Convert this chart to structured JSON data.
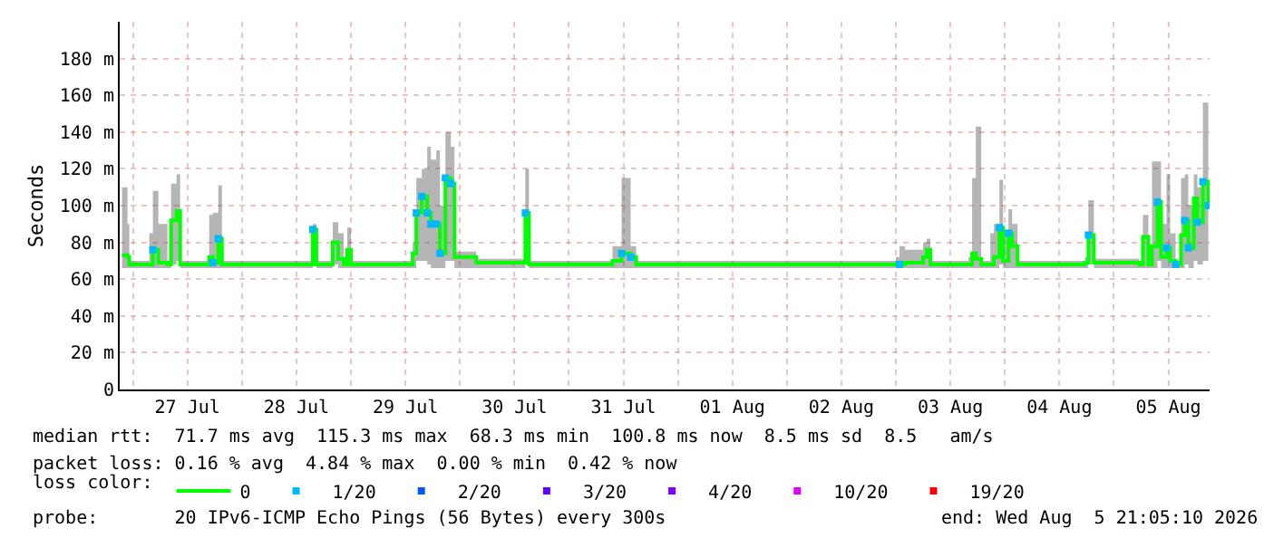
{
  "chart_data": {
    "type": "line",
    "ylabel": "Seconds",
    "xlim": [
      "2026-07-26T21:05",
      "2026-08-05T21:05"
    ],
    "ylim": [
      0,
      200
    ],
    "yticks": [
      0,
      {
        "value": 20,
        "label": "20 m"
      },
      {
        "value": 40,
        "label": "40 m"
      },
      {
        "value": 60,
        "label": "60 m"
      },
      {
        "value": 80,
        "label": "80 m"
      },
      {
        "value": 100,
        "label": "100 m"
      },
      {
        "value": 120,
        "label": "120 m"
      },
      {
        "value": 140,
        "label": "140 m"
      },
      {
        "value": 160,
        "label": "160 m"
      },
      {
        "value": 180,
        "label": "180 m"
      }
    ],
    "xticks": [
      {
        "value": "2026-07-27",
        "label": null
      },
      {
        "value": "2026-07-27T12:00",
        "label": "27 Jul"
      },
      {
        "value": "2026-07-28",
        "label": null
      },
      {
        "value": "2026-07-28T12:00",
        "label": "28 Jul"
      },
      {
        "value": "2026-07-29",
        "label": null
      },
      {
        "value": "2026-07-29T12:00",
        "label": "29 Jul"
      },
      {
        "value": "2026-07-30",
        "label": null
      },
      {
        "value": "2026-07-30T12:00",
        "label": "30 Jul"
      },
      {
        "value": "2026-07-31",
        "label": null
      },
      {
        "value": "2026-07-31T12:00",
        "label": "31 Jul"
      },
      {
        "value": "2026-08-01",
        "label": null
      },
      {
        "value": "2026-08-01T12:00",
        "label": "01 Aug"
      },
      {
        "value": "2026-08-02",
        "label": null
      },
      {
        "value": "2026-08-02T12:00",
        "label": "02 Aug"
      },
      {
        "value": "2026-08-03",
        "label": null
      },
      {
        "value": "2026-08-03T12:00",
        "label": "03 Aug"
      },
      {
        "value": "2026-08-04",
        "label": null
      },
      {
        "value": "2026-08-04T12:00",
        "label": "04 Aug"
      },
      {
        "value": "2026-08-05",
        "label": null
      },
      {
        "value": "2026-08-05T12:00",
        "label": "05 Aug"
      }
    ],
    "grid": true,
    "legend": "bottom",
    "legend_title": "loss color:",
    "series": [
      {
        "name": "0",
        "color": "#00ff00",
        "x": [
          "2026-07-26T21:36",
          "2026-07-26T22:48",
          "2026-07-26T23:12",
          "2026-07-27T03:36",
          "2026-07-27T04:24",
          "2026-07-27T05:36",
          "2026-07-27T07:36",
          "2026-07-27T08:24",
          "2026-07-27T09:36",
          "2026-07-27T10:24",
          "2026-07-27T16:24",
          "2026-07-27T16:48",
          "2026-07-27T17:36",
          "2026-07-27T18:48",
          "2026-07-27T19:36",
          "2026-07-28T14:48",
          "2026-07-28T15:36",
          "2026-07-28T16:24",
          "2026-07-28T19:12",
          "2026-07-28T20:00",
          "2026-07-28T21:12",
          "2026-07-28T22:24",
          "2026-07-28T23:12",
          "2026-07-29T00:00",
          "2026-07-29T13:12",
          "2026-07-29T13:36",
          "2026-07-29T14:24",
          "2026-07-29T15:36",
          "2026-07-29T16:48",
          "2026-07-29T17:36",
          "2026-07-29T18:48",
          "2026-07-29T19:36",
          "2026-07-29T20:48",
          "2026-07-29T22:00",
          "2026-07-29T22:48",
          "2026-07-30T02:48",
          "2026-07-30T03:36",
          "2026-07-30T13:36",
          "2026-07-30T14:24",
          "2026-07-30T15:12",
          "2026-07-31T08:48",
          "2026-07-31T09:36",
          "2026-07-31T11:36",
          "2026-07-31T13:36",
          "2026-07-31T14:48",
          "2026-08-03T00:00",
          "2026-08-03T00:48",
          "2026-08-03T02:00",
          "2026-08-03T06:00",
          "2026-08-03T06:48",
          "2026-08-03T07:36",
          "2026-08-03T16:00",
          "2026-08-03T16:48",
          "2026-08-03T17:36",
          "2026-08-03T18:48",
          "2026-08-03T20:48",
          "2026-08-03T21:36",
          "2026-08-03T22:48",
          "2026-08-03T23:36",
          "2026-08-04T00:48",
          "2026-08-04T01:36",
          "2026-08-04T02:48",
          "2026-08-04T17:36",
          "2026-08-04T18:24",
          "2026-08-04T19:36",
          "2026-08-05T05:36",
          "2026-08-05T06:24",
          "2026-08-05T07:36",
          "2026-08-05T08:24",
          "2026-08-05T09:36",
          "2026-08-05T10:24",
          "2026-08-05T11:36",
          "2026-08-05T12:24",
          "2026-08-05T13:36",
          "2026-08-05T14:48",
          "2026-08-05T15:36",
          "2026-08-05T16:24",
          "2026-08-05T17:36",
          "2026-08-05T18:24",
          "2026-08-05T19:36",
          "2026-08-05T20:48"
        ],
        "values": [
          73,
          72,
          68,
          68,
          76,
          69,
          68,
          92,
          97,
          68,
          68,
          72,
          69,
          82,
          68,
          68,
          87,
          68,
          68,
          80,
          71,
          68,
          76,
          68,
          68,
          74,
          96,
          105,
          96,
          90,
          90,
          74,
          115,
          112,
          72,
          72,
          69,
          69,
          96,
          68,
          68,
          70,
          74,
          72,
          68,
          68,
          68,
          69,
          72,
          76,
          68,
          68,
          74,
          71,
          68,
          68,
          72,
          88,
          70,
          85,
          78,
          68,
          69,
          84,
          69,
          68,
          83,
          68,
          78,
          102,
          72,
          77,
          70,
          68,
          84,
          92,
          77,
          104,
          91,
          113,
          100
        ],
        "lower": [
          66,
          66,
          66,
          66,
          66,
          66,
          66,
          68,
          70,
          66,
          66,
          66,
          66,
          66,
          66,
          66,
          68,
          66,
          66,
          68,
          66,
          66,
          66,
          66,
          66,
          66,
          70,
          70,
          68,
          66,
          66,
          66,
          70,
          70,
          66,
          66,
          66,
          66,
          68,
          66,
          66,
          66,
          66,
          66,
          66,
          66,
          66,
          66,
          66,
          66,
          66,
          66,
          66,
          66,
          66,
          66,
          66,
          68,
          66,
          66,
          66,
          66,
          66,
          68,
          66,
          66,
          66,
          66,
          66,
          70,
          66,
          66,
          66,
          66,
          66,
          68,
          66,
          70,
          68,
          70,
          70
        ],
        "upper": [
          110,
          90,
          70,
          85,
          108,
          90,
          70,
          112,
          117,
          70,
          70,
          95,
          96,
          111,
          70,
          70,
          90,
          70,
          70,
          91,
          85,
          70,
          88,
          70,
          70,
          80,
          115,
          120,
          132,
          125,
          130,
          100,
          140,
          132,
          75,
          75,
          71,
          71,
          120,
          70,
          70,
          78,
          115,
          78,
          70,
          72,
          78,
          76,
          80,
          82,
          70,
          72,
          115,
          143,
          70,
          85,
          90,
          114,
          85,
          98,
          90,
          70,
          72,
          103,
          71,
          70,
          95,
          70,
          124,
          124,
          90,
          117,
          85,
          70,
          115,
          117,
          100,
          117,
          110,
          156,
          128
        ]
      },
      {
        "name": "1/20",
        "color": "#00b8ff",
        "type": "scatter",
        "marker": "square",
        "x": [
          "2026-07-27T04:24",
          "2026-07-27T17:36",
          "2026-07-27T18:48",
          "2026-07-28T15:36",
          "2026-07-29T14:24",
          "2026-07-29T15:36",
          "2026-07-29T16:48",
          "2026-07-29T17:36",
          "2026-07-29T18:48",
          "2026-07-29T19:36",
          "2026-07-29T20:48",
          "2026-07-29T22:00",
          "2026-07-30T14:24",
          "2026-07-31T11:36",
          "2026-07-31T13:36",
          "2026-08-03T00:48",
          "2026-08-03T22:48",
          "2026-08-04T00:48",
          "2026-08-04T18:24",
          "2026-08-05T09:36",
          "2026-08-05T11:36",
          "2026-08-05T13:36",
          "2026-08-05T15:36",
          "2026-08-05T16:24",
          "2026-08-05T18:24",
          "2026-08-05T19:36",
          "2026-08-05T20:48"
        ],
        "values": [
          76,
          69,
          82,
          87,
          96,
          105,
          96,
          90,
          90,
          74,
          115,
          112,
          96,
          74,
          72,
          68,
          88,
          85,
          84,
          102,
          77,
          68,
          92,
          77,
          91,
          113,
          100
        ]
      },
      {
        "name": "2/20",
        "color": "#0059ff",
        "type": "scatter",
        "marker": "square"
      },
      {
        "name": "3/20",
        "color": "#5e00ff",
        "type": "scatter",
        "marker": "square"
      },
      {
        "name": "4/20",
        "color": "#7e00ff",
        "type": "scatter",
        "marker": "square"
      },
      {
        "name": "10/20",
        "color": "#dd00ff",
        "type": "scatter",
        "marker": "square"
      },
      {
        "name": "19/20",
        "color": "#ff0000",
        "type": "scatter",
        "marker": "square"
      }
    ],
    "annotations": [
      "median rtt:  71.7 ms avg  115.3 ms max  68.3 ms min  100.8 ms now  8.5 ms sd  8.5   am/s",
      "packet loss: 0.16 % avg  4.84 % max  0.00 % min  0.42 % now",
      "probe:       20 IPv6-ICMP Echo Pings (56 Bytes) every 300s",
      "end: Wed Aug  5 21:05:10 2026"
    ]
  }
}
